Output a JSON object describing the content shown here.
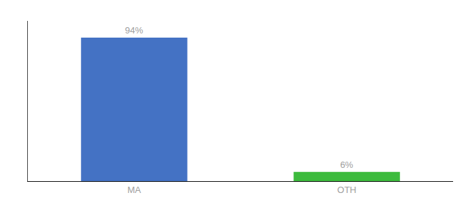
{
  "chart_data": {
    "type": "bar",
    "categories": [
      "MA",
      "OTH"
    ],
    "values": [
      94,
      6
    ],
    "value_labels": [
      "94%",
      "6%"
    ],
    "colors": [
      "#4472c4",
      "#3dbb3d"
    ],
    "data_labels": true,
    "ylim": [
      0,
      105
    ],
    "grid": false,
    "tick_labels": "x"
  }
}
